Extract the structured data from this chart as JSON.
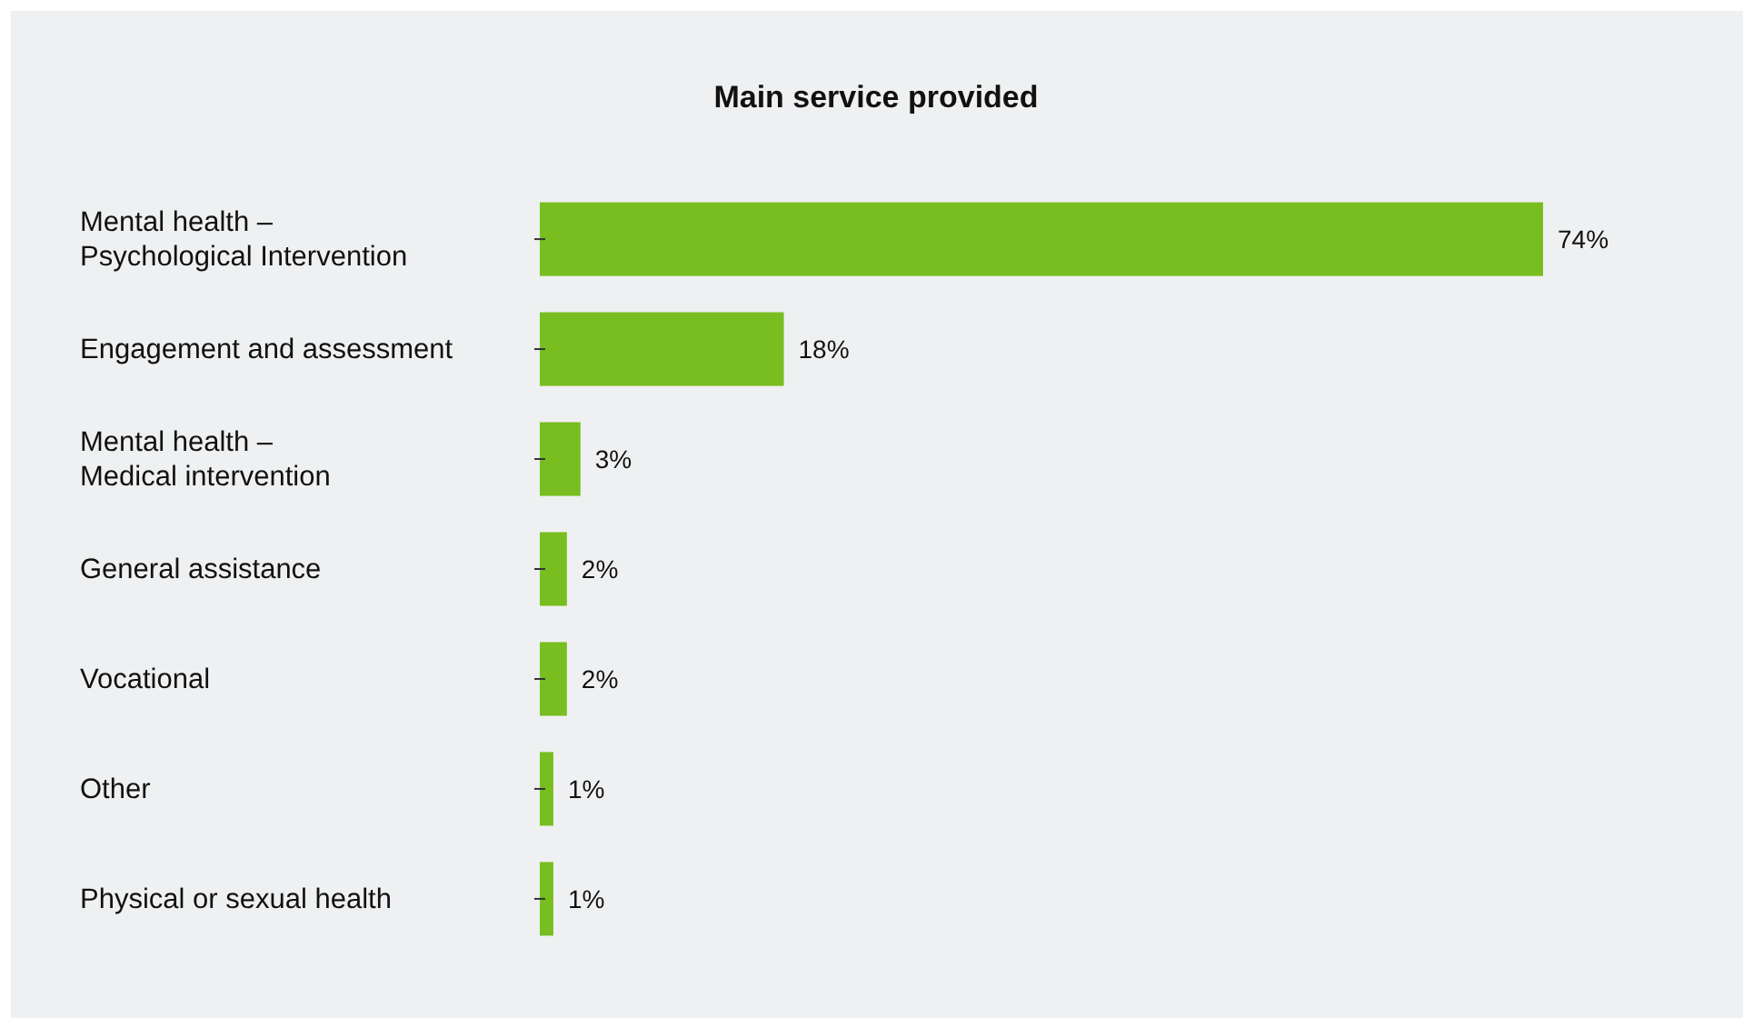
{
  "chart_data": {
    "type": "bar",
    "orientation": "horizontal",
    "title": "Main service provided",
    "categories": [
      "Mental health –\nPsychological Intervention",
      "Engagement and assessment",
      "Mental health –\nMedical intervention",
      "General assistance",
      "Vocational",
      "Other",
      "Physical or sexual health"
    ],
    "values": [
      74,
      18,
      3,
      2,
      2,
      1,
      1
    ],
    "color": "#78be20",
    "data_labels": true,
    "value_labels": [
      "74%",
      "18%",
      "3%",
      "2%",
      "2%",
      "1%",
      "1%"
    ]
  }
}
